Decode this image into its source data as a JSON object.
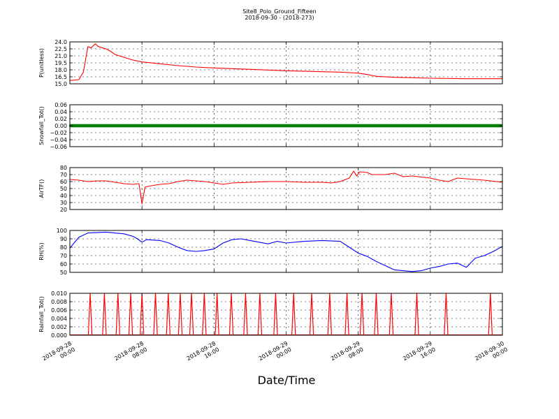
{
  "chart_data": {
    "type": "line",
    "title": "Site8_Polo_Ground_Fifteen",
    "subtitle": "2018-09-30 - (2018-273)",
    "xlabel": "Date/Time",
    "x_range": [
      "2018-09-28T00:00",
      "2018-09-30T00:00"
    ],
    "x_tick_labels": [
      [
        "2018-09-28",
        "00:00"
      ],
      [
        "2018-09-28",
        "08:00"
      ],
      [
        "2018-09-28",
        "16:00"
      ],
      [
        "2018-09-29",
        "00:00"
      ],
      [
        "2018-09-29",
        "08:00"
      ],
      [
        "2018-09-29",
        "16:00"
      ],
      [
        "2018-09-30",
        "00:00"
      ]
    ],
    "grid": true,
    "panels": [
      {
        "ylabel": "P(unitless)",
        "ylim": [
          15.0,
          24.0
        ],
        "y_ticks": [
          "15.0",
          "16.5",
          "18.0",
          "19.5",
          "21.0",
          "22.5",
          "24.0"
        ],
        "series": [
          {
            "color": "#ff0000",
            "points": [
              [
                "2018-09-28T00:00",
                15.7
              ],
              [
                "2018-09-28T01:00",
                15.9
              ],
              [
                "2018-09-28T01:30",
                17.5
              ],
              [
                "2018-09-28T02:00",
                23.0
              ],
              [
                "2018-09-28T02:20",
                22.7
              ],
              [
                "2018-09-28T02:50",
                23.6
              ],
              [
                "2018-09-28T03:10",
                23.0
              ],
              [
                "2018-09-28T04:00",
                22.5
              ],
              [
                "2018-09-28T04:30",
                22.0
              ],
              [
                "2018-09-28T05:00",
                21.3
              ],
              [
                "2018-09-28T06:00",
                20.7
              ],
              [
                "2018-09-28T07:00",
                20.1
              ],
              [
                "2018-09-28T08:00",
                19.7
              ],
              [
                "2018-09-28T10:00",
                19.3
              ],
              [
                "2018-09-28T12:00",
                18.9
              ],
              [
                "2018-09-28T14:00",
                18.6
              ],
              [
                "2018-09-28T16:00",
                18.4
              ],
              [
                "2018-09-28T20:00",
                18.1
              ],
              [
                "2018-09-29T00:00",
                17.8
              ],
              [
                "2018-09-29T04:00",
                17.6
              ],
              [
                "2018-09-29T06:00",
                17.5
              ],
              [
                "2018-09-29T08:00",
                17.3
              ],
              [
                "2018-09-29T09:00",
                17.0
              ],
              [
                "2018-09-29T10:00",
                16.6
              ],
              [
                "2018-09-29T12:00",
                16.4
              ],
              [
                "2018-09-29T16:00",
                16.2
              ],
              [
                "2018-09-29T20:00",
                16.1
              ],
              [
                "2018-09-30T00:00",
                16.1
              ]
            ]
          }
        ]
      },
      {
        "ylabel": "Snowfall_Tot()",
        "ylim": [
          -0.06,
          0.06
        ],
        "y_ticks": [
          "−0.06",
          "−0.04",
          "−0.02",
          "0.00",
          "0.02",
          "0.04",
          "0.06"
        ],
        "series": [
          {
            "color": "#008000",
            "marker": "dot",
            "points": [
              [
                "2018-09-28T00:00",
                0.0
              ],
              [
                "2018-09-30T00:00",
                0.0
              ]
            ]
          }
        ]
      },
      {
        "ylabel": "AirTF()",
        "ylim": [
          20,
          80
        ],
        "y_ticks": [
          "20",
          "30",
          "40",
          "50",
          "60",
          "70",
          "80"
        ],
        "series": [
          {
            "color": "#ff0000",
            "points": [
              [
                "2018-09-28T00:00",
                63
              ],
              [
                "2018-09-28T01:00",
                62
              ],
              [
                "2018-09-28T02:00",
                60
              ],
              [
                "2018-09-28T03:00",
                61
              ],
              [
                "2018-09-28T04:00",
                61
              ],
              [
                "2018-09-28T05:00",
                59
              ],
              [
                "2018-09-28T06:00",
                57
              ],
              [
                "2018-09-28T07:00",
                56
              ],
              [
                "2018-09-28T07:40",
                57
              ],
              [
                "2018-09-28T08:00",
                28
              ],
              [
                "2018-09-28T08:20",
                52
              ],
              [
                "2018-09-28T09:00",
                54
              ],
              [
                "2018-09-28T10:00",
                56
              ],
              [
                "2018-09-28T11:00",
                57
              ],
              [
                "2018-09-28T12:00",
                60
              ],
              [
                "2018-09-28T13:00",
                62
              ],
              [
                "2018-09-28T14:00",
                61
              ],
              [
                "2018-09-28T15:00",
                60
              ],
              [
                "2018-09-28T16:00",
                58
              ],
              [
                "2018-09-28T17:00",
                56
              ],
              [
                "2018-09-28T18:00",
                58
              ],
              [
                "2018-09-28T20:00",
                59
              ],
              [
                "2018-09-28T22:00",
                60
              ],
              [
                "2018-09-29T00:00",
                60
              ],
              [
                "2018-09-29T02:00",
                59
              ],
              [
                "2018-09-29T04:00",
                59
              ],
              [
                "2018-09-29T05:00",
                58
              ],
              [
                "2018-09-29T06:00",
                60
              ],
              [
                "2018-09-29T07:00",
                65
              ],
              [
                "2018-09-29T07:30",
                75
              ],
              [
                "2018-09-29T07:50",
                68
              ],
              [
                "2018-09-29T08:10",
                74
              ],
              [
                "2018-09-29T09:00",
                73
              ],
              [
                "2018-09-29T09:30",
                70
              ],
              [
                "2018-09-29T11:00",
                70
              ],
              [
                "2018-09-29T12:00",
                72
              ],
              [
                "2018-09-29T13:00",
                67
              ],
              [
                "2018-09-29T14:00",
                68
              ],
              [
                "2018-09-29T16:00",
                65
              ],
              [
                "2018-09-29T17:00",
                62
              ],
              [
                "2018-09-29T18:00",
                60
              ],
              [
                "2018-09-29T19:00",
                65
              ],
              [
                "2018-09-29T20:00",
                64
              ],
              [
                "2018-09-29T22:00",
                62
              ],
              [
                "2018-09-30T00:00",
                59
              ]
            ]
          }
        ]
      },
      {
        "ylabel": "RH(%)",
        "ylim": [
          50,
          100
        ],
        "y_ticks": [
          "50",
          "60",
          "70",
          "80",
          "90",
          "100"
        ],
        "series": [
          {
            "color": "#0000ff",
            "points": [
              [
                "2018-09-28T00:00",
                79
              ],
              [
                "2018-09-28T01:00",
                92
              ],
              [
                "2018-09-28T02:00",
                97
              ],
              [
                "2018-09-28T04:00",
                98
              ],
              [
                "2018-09-28T06:00",
                96
              ],
              [
                "2018-09-28T07:00",
                93
              ],
              [
                "2018-09-28T07:30",
                90
              ],
              [
                "2018-09-28T08:00",
                86
              ],
              [
                "2018-09-28T08:30",
                89
              ],
              [
                "2018-09-28T10:00",
                88
              ],
              [
                "2018-09-28T11:00",
                85
              ],
              [
                "2018-09-28T12:00",
                80
              ],
              [
                "2018-09-28T13:00",
                76
              ],
              [
                "2018-09-28T14:00",
                75
              ],
              [
                "2018-09-28T15:00",
                76
              ],
              [
                "2018-09-28T16:00",
                78
              ],
              [
                "2018-09-28T17:00",
                85
              ],
              [
                "2018-09-28T18:00",
                89
              ],
              [
                "2018-09-28T19:00",
                90
              ],
              [
                "2018-09-28T20:00",
                88
              ],
              [
                "2018-09-28T21:00",
                86
              ],
              [
                "2018-09-28T22:00",
                84
              ],
              [
                "2018-09-28T23:00",
                87
              ],
              [
                "2018-09-29T00:00",
                85
              ],
              [
                "2018-09-29T02:00",
                87
              ],
              [
                "2018-09-29T04:00",
                88
              ],
              [
                "2018-09-29T06:00",
                87
              ],
              [
                "2018-09-29T07:00",
                80
              ],
              [
                "2018-09-29T08:00",
                73
              ],
              [
                "2018-09-29T09:00",
                69
              ],
              [
                "2018-09-29T10:00",
                63
              ],
              [
                "2018-09-29T11:00",
                58
              ],
              [
                "2018-09-29T12:00",
                53
              ],
              [
                "2018-09-29T14:00",
                51
              ],
              [
                "2018-09-29T15:00",
                52
              ],
              [
                "2018-09-29T16:00",
                55
              ],
              [
                "2018-09-29T17:00",
                57
              ],
              [
                "2018-09-29T18:00",
                60
              ],
              [
                "2018-09-29T19:00",
                61
              ],
              [
                "2018-09-29T20:00",
                56
              ],
              [
                "2018-09-29T21:00",
                67
              ],
              [
                "2018-09-29T22:00",
                70
              ],
              [
                "2018-09-29T23:00",
                75
              ],
              [
                "2018-09-30T00:00",
                81
              ]
            ]
          }
        ]
      },
      {
        "ylabel": "Rainfall_Tot()",
        "ylim": [
          0.0,
          0.01
        ],
        "y_ticks": [
          "0.000",
          "0.002",
          "0.004",
          "0.006",
          "0.008",
          "0.010"
        ],
        "series": [
          {
            "color": "#ff0000",
            "type": "spikes",
            "spike_value": 0.01,
            "spikes_at": [
              "2018-09-28T02:15",
              "2018-09-28T03:50",
              "2018-09-28T05:20",
              "2018-09-28T06:45",
              "2018-09-28T08:00",
              "2018-09-28T09:30",
              "2018-09-28T10:55",
              "2018-09-28T12:15",
              "2018-09-28T13:30",
              "2018-09-28T14:55",
              "2018-09-28T16:20",
              "2018-09-28T17:55",
              "2018-09-28T19:30",
              "2018-09-28T21:05",
              "2018-09-28T22:50",
              "2018-09-29T00:50",
              "2018-09-29T02:50",
              "2018-09-29T04:50",
              "2018-09-29T06:45",
              "2018-09-29T08:25",
              "2018-09-29T10:00",
              "2018-09-29T11:40",
              "2018-09-29T14:30",
              "2018-09-29T17:45",
              "2018-09-29T22:40"
            ]
          }
        ]
      }
    ]
  }
}
